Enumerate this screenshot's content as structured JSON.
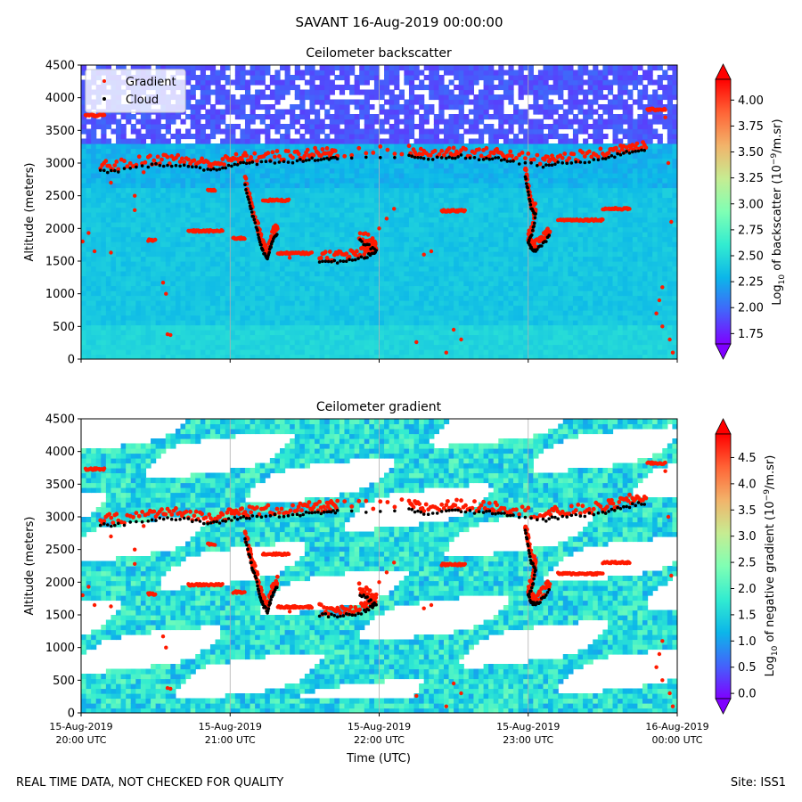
{
  "suptitle": "SAVANT 16-Aug-2019 00:00:00",
  "footer_left": "REAL TIME DATA, NOT CHECKED FOR QUALITY",
  "footer_right": "Site: ISS1",
  "colors": {
    "gradient_marker": "#ff1a00",
    "cloud_marker": "#000000",
    "colormap": [
      "#7f00ff",
      "#4363fb",
      "#0cb6e9",
      "#32ecd0",
      "#7fffb4",
      "#c6ec92",
      "#f2b36a",
      "#ff6436",
      "#ff0000"
    ]
  },
  "chart_data": [
    {
      "type": "heatmap",
      "title": "Ceilometer backscatter",
      "ylabel": "Altitude (meters)",
      "ylim": [
        0,
        4500
      ],
      "yticks": [
        0,
        500,
        1000,
        1500,
        2000,
        2500,
        3000,
        3500,
        4000,
        4500
      ],
      "colorbar": {
        "label": "Log10 of backscatter (10^-9/m.sr)",
        "label_parts": [
          "Log",
          "10",
          " of backscatter (10",
          "−9",
          "/m.sr)"
        ],
        "range": [
          1.65,
          4.2
        ],
        "ticks": [
          "1.75",
          "2.00",
          "2.25",
          "2.50",
          "2.75",
          "3.00",
          "3.25",
          "3.50",
          "3.75",
          "4.00"
        ],
        "tick_values": [
          1.75,
          2.0,
          2.25,
          2.5,
          2.75,
          3.0,
          3.25,
          3.5,
          3.75,
          4.0
        ]
      },
      "legend": {
        "placement": "top-left",
        "entries": [
          "Gradient",
          "Cloud"
        ]
      },
      "grid": "vertical lines at hourly ticks"
    },
    {
      "type": "heatmap",
      "title": "Ceilometer gradient",
      "ylabel": "Altitude (meters)",
      "xlabel": "Time (UTC)",
      "ylim": [
        0,
        4500
      ],
      "yticks": [
        0,
        500,
        1000,
        1500,
        2000,
        2500,
        3000,
        3500,
        4000,
        4500
      ],
      "xticks": [
        {
          "line1": "15-Aug-2019",
          "line2": "20:00 UTC",
          "hour": 0
        },
        {
          "line1": "15-Aug-2019",
          "line2": "21:00 UTC",
          "hour": 1
        },
        {
          "line1": "15-Aug-2019",
          "line2": "22:00 UTC",
          "hour": 2
        },
        {
          "line1": "15-Aug-2019",
          "line2": "23:00 UTC",
          "hour": 3
        },
        {
          "line1": "16-Aug-2019",
          "line2": "00:00 UTC",
          "hour": 4
        }
      ],
      "colorbar": {
        "label": "Log10 of negative gradient (10^-9/m.sr)",
        "label_parts": [
          "Log",
          "10",
          " of negative gradient (10",
          "−9",
          "/m.sr)"
        ],
        "range": [
          -0.1,
          4.95
        ],
        "ticks": [
          "0.0",
          "0.5",
          "1.0",
          "1.5",
          "2.0",
          "2.5",
          "3.0",
          "3.5",
          "4.0",
          "4.5"
        ],
        "tick_values": [
          0,
          0.5,
          1.0,
          1.5,
          2.0,
          2.5,
          3.0,
          3.5,
          4.0,
          4.5
        ]
      },
      "grid": "vertical lines at hourly ticks"
    }
  ],
  "series": {
    "cloud_layer_main": {
      "name": "Cloud",
      "points": [
        [
          0.13,
          2870
        ],
        [
          0.25,
          2880
        ],
        [
          0.45,
          2960
        ],
        [
          0.58,
          2980
        ],
        [
          0.72,
          2950
        ],
        [
          0.85,
          2900
        ],
        [
          0.95,
          2930
        ],
        [
          1.05,
          2980
        ],
        [
          1.15,
          3000
        ],
        [
          1.3,
          3020
        ],
        [
          1.45,
          3030
        ],
        [
          1.55,
          3060
        ],
        [
          1.65,
          3070
        ],
        [
          1.72,
          3080
        ],
        [
          2.2,
          3100
        ],
        [
          2.3,
          3050
        ],
        [
          2.45,
          3080
        ],
        [
          2.55,
          3100
        ],
        [
          2.7,
          3060
        ],
        [
          2.8,
          3070
        ],
        [
          2.9,
          3020
        ],
        [
          3.1,
          2950
        ],
        [
          3.2,
          2990
        ],
        [
          3.35,
          3020
        ],
        [
          3.5,
          3060
        ],
        [
          3.6,
          3120
        ],
        [
          3.7,
          3180
        ],
        [
          3.8,
          3220
        ]
      ]
    },
    "cloud_descent_1": {
      "name": "Cloud",
      "points": [
        [
          1.1,
          2650
        ],
        [
          1.13,
          2400
        ],
        [
          1.15,
          2200
        ],
        [
          1.18,
          2000
        ],
        [
          1.2,
          1800
        ],
        [
          1.22,
          1650
        ],
        [
          1.25,
          1550
        ],
        [
          1.27,
          1700
        ],
        [
          1.29,
          1850
        ],
        [
          1.32,
          1950
        ]
      ]
    },
    "cloud_low_block": {
      "name": "Cloud",
      "points": [
        [
          1.6,
          1500
        ],
        [
          1.7,
          1490
        ],
        [
          1.8,
          1500
        ],
        [
          1.9,
          1550
        ],
        [
          1.95,
          1620
        ],
        [
          1.98,
          1640
        ],
        [
          1.92,
          1750
        ],
        [
          1.86,
          1820
        ]
      ]
    },
    "cloud_descent_2": {
      "name": "Cloud",
      "points": [
        [
          2.98,
          2800
        ],
        [
          3.0,
          2550
        ],
        [
          3.02,
          2300
        ],
        [
          3.05,
          2200
        ],
        [
          3.03,
          1950
        ],
        [
          3.0,
          1800
        ],
        [
          3.02,
          1700
        ],
        [
          3.05,
          1650
        ],
        [
          3.1,
          1760
        ],
        [
          3.15,
          1900
        ]
      ]
    },
    "gradient_layers": {
      "name": "Gradient",
      "segments": [
        {
          "hour_range": [
            0.03,
            0.16
          ],
          "altitude": 3730
        },
        {
          "hour_range": [
            0.72,
            0.95
          ],
          "altitude": 1960
        },
        {
          "hour_range": [
            1.02,
            1.1
          ],
          "altitude": 1850
        },
        {
          "hour_range": [
            1.22,
            1.4
          ],
          "altitude": 2430
        },
        {
          "hour_range": [
            1.32,
            1.55
          ],
          "altitude": 1620
        },
        {
          "hour_range": [
            2.42,
            2.58
          ],
          "altitude": 2270
        },
        {
          "hour_range": [
            3.2,
            3.5
          ],
          "altitude": 2130
        },
        {
          "hour_range": [
            3.5,
            3.68
          ],
          "altitude": 2300
        },
        {
          "hour_range": [
            3.8,
            3.92
          ],
          "altitude": 3820
        },
        {
          "hour_range": [
            0.45,
            0.5
          ],
          "altitude": 1820
        },
        {
          "hour_range": [
            0.85,
            0.9
          ],
          "altitude": 2580
        }
      ],
      "scattered": [
        [
          0.01,
          1800
        ],
        [
          0.05,
          1930
        ],
        [
          0.09,
          1650
        ],
        [
          0.2,
          1630
        ],
        [
          0.36,
          2280
        ],
        [
          0.42,
          2860
        ],
        [
          0.55,
          1170
        ],
        [
          0.57,
          1000
        ],
        [
          0.58,
          380
        ],
        [
          0.6,
          370
        ],
        [
          0.2,
          2700
        ],
        [
          0.36,
          2500
        ],
        [
          2.0,
          2000
        ],
        [
          2.05,
          2150
        ],
        [
          2.1,
          2300
        ],
        [
          2.25,
          260
        ],
        [
          2.45,
          100
        ],
        [
          2.5,
          450
        ],
        [
          2.55,
          300
        ],
        [
          3.92,
          3700
        ],
        [
          3.94,
          3000
        ],
        [
          3.96,
          2100
        ],
        [
          3.9,
          1100
        ],
        [
          3.88,
          900
        ],
        [
          3.86,
          700
        ],
        [
          3.9,
          500
        ],
        [
          3.95,
          300
        ],
        [
          3.97,
          100
        ],
        [
          1.4,
          1550
        ],
        [
          2.3,
          1600
        ],
        [
          2.35,
          1650
        ]
      ]
    }
  }
}
